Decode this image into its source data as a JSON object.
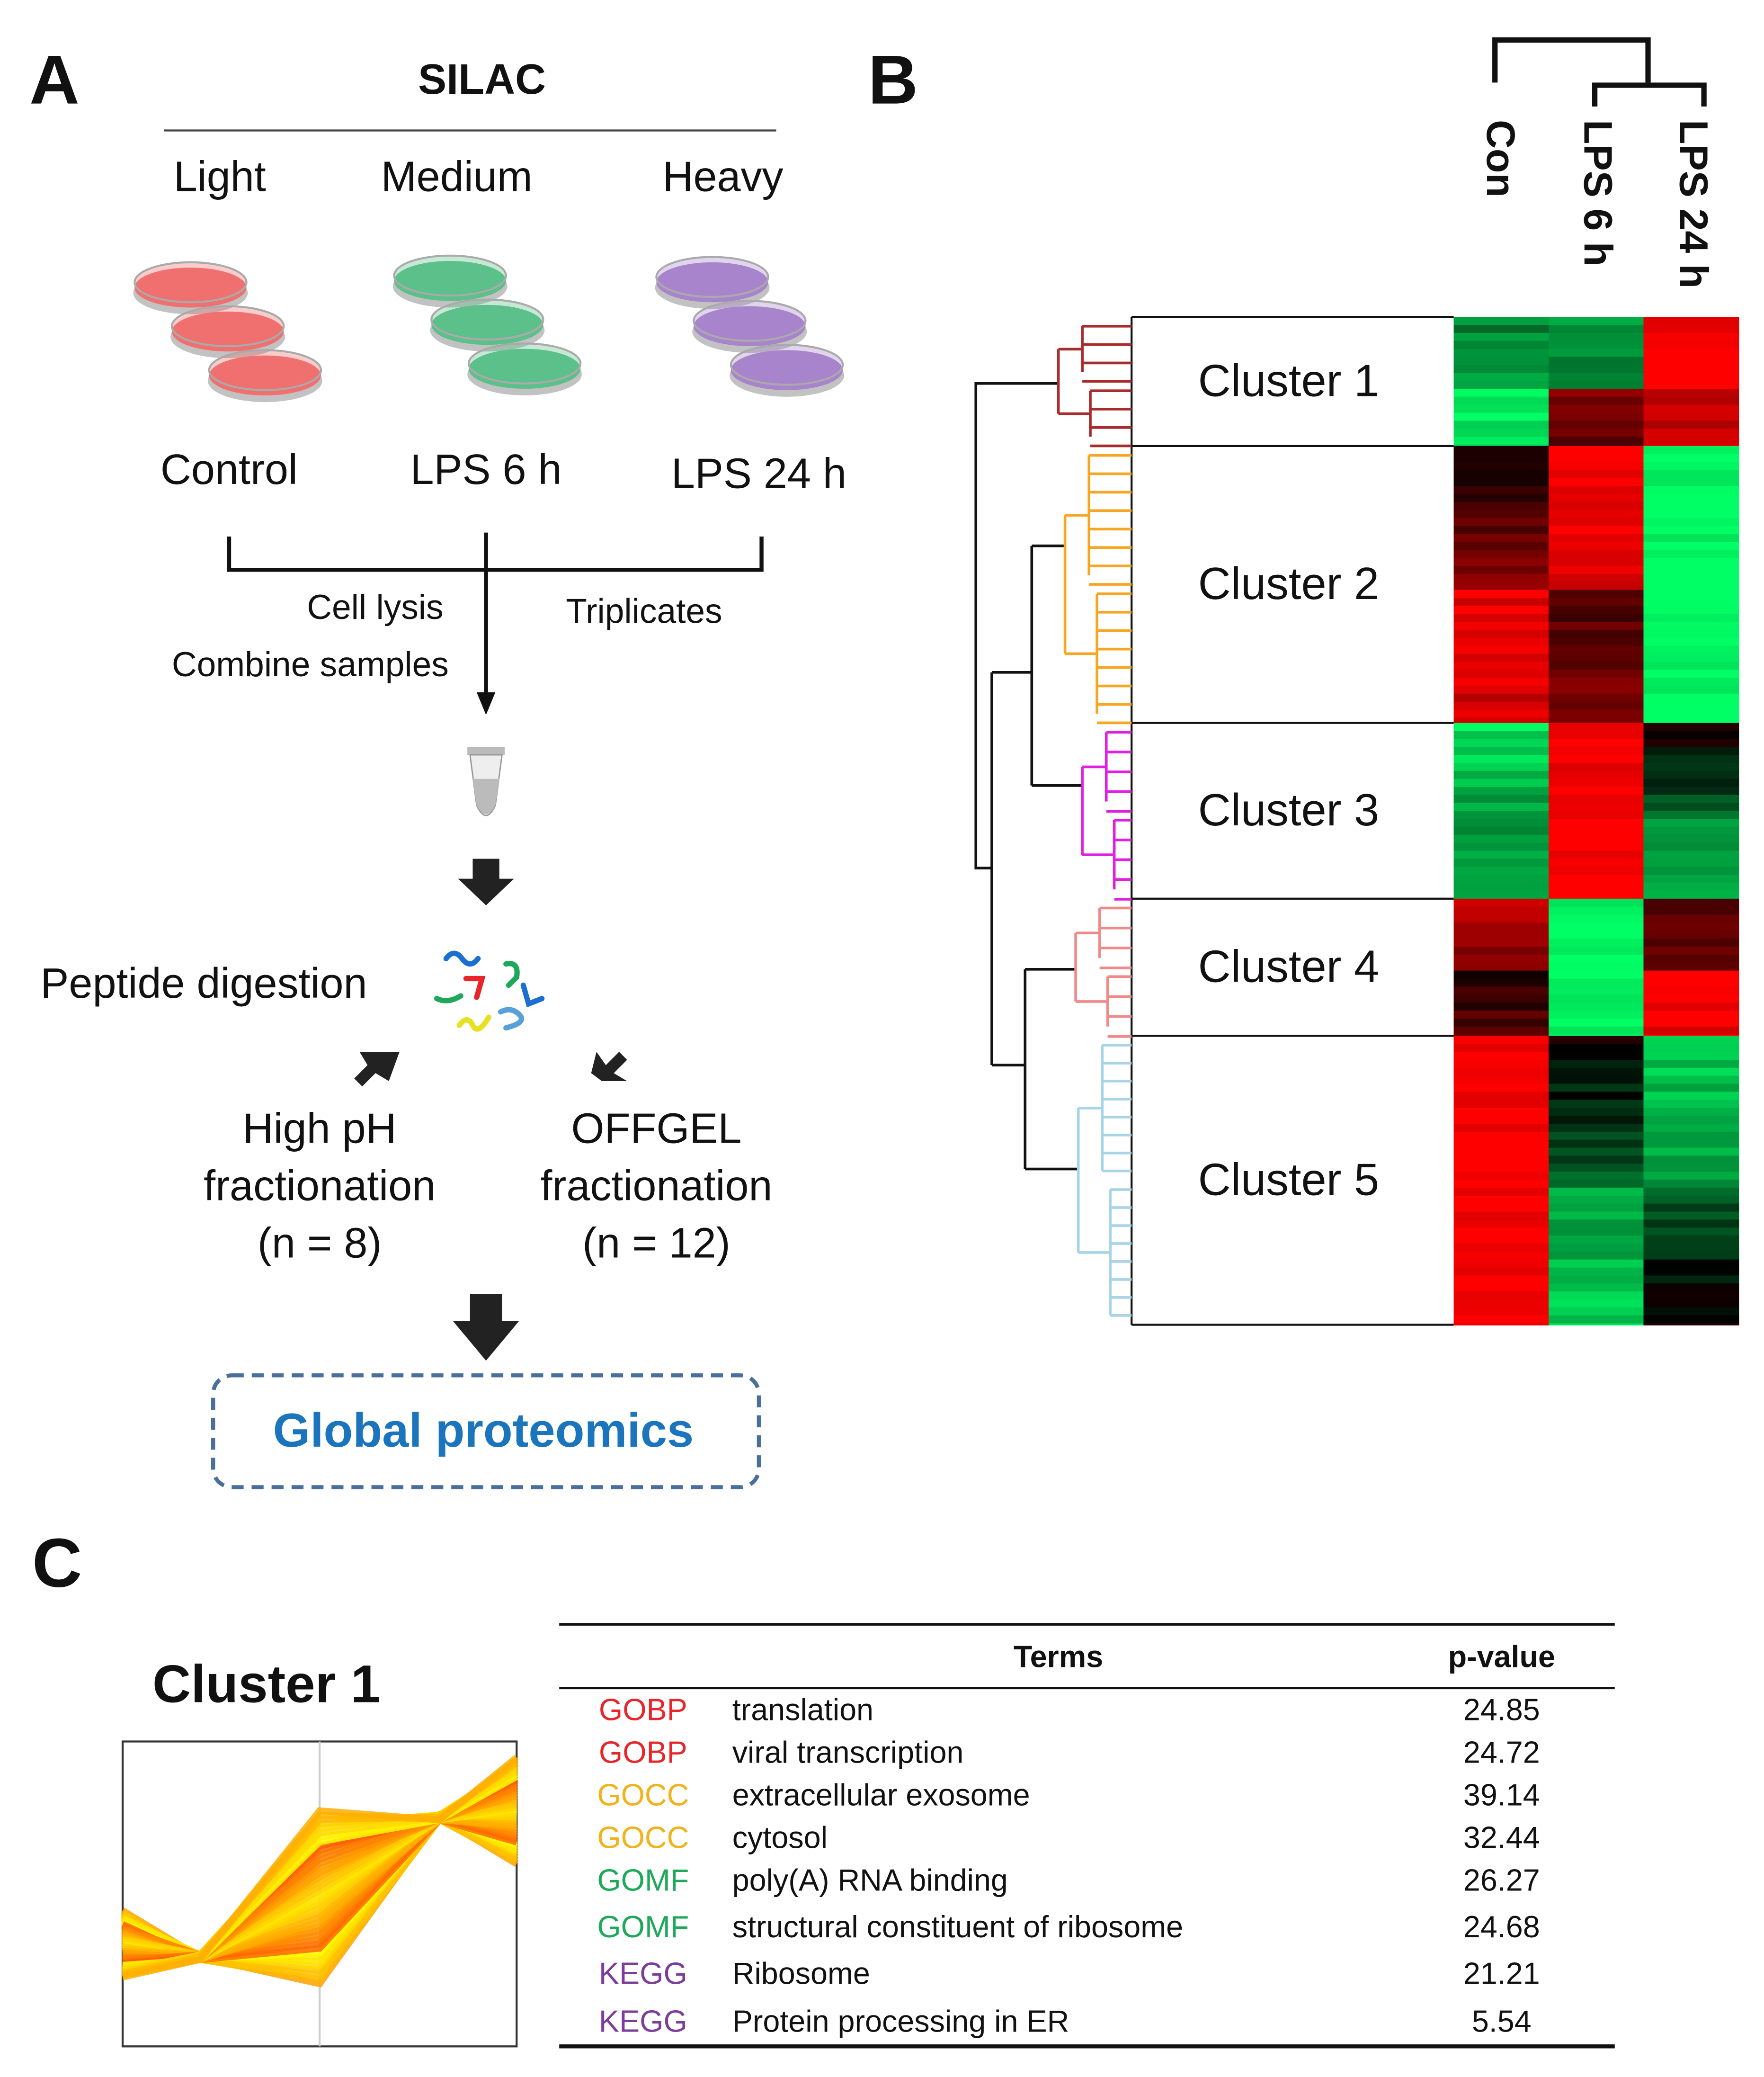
{
  "panel_a": {
    "label": "A",
    "title": "SILAC",
    "labels": [
      "Light",
      "Medium",
      "Heavy"
    ],
    "conditions": [
      "Control",
      "LPS 6 h",
      "LPS 24 h"
    ],
    "dish_colors": [
      "#f07070",
      "#5cc08a",
      "#a884cc"
    ],
    "lysis": "Cell lysis",
    "combine": "Combine samples",
    "triplicates": "Triplicates",
    "digestion": "Peptide digestion",
    "fractionations": [
      {
        "lines": [
          "High pH",
          "fractionation",
          "(n = 8)"
        ]
      },
      {
        "lines": [
          "OFFGEL",
          "fractionation",
          "(n = 12)"
        ]
      }
    ],
    "result": "Global proteomics"
  },
  "panel_b": {
    "label": "B",
    "columns": [
      "Con",
      "LPS 6 h",
      "LPS 24 h"
    ],
    "clusters": [
      "Cluster 1",
      "Cluster 2",
      "Cluster 3",
      "Cluster 4",
      "Cluster 5"
    ],
    "cluster_colors": [
      "#a82c2c",
      "#f5a623",
      "#e020e0",
      "#f08a8a",
      "#a8d4e8"
    ]
  },
  "panel_c": {
    "label": "C",
    "title": "Cluster 1",
    "header": [
      "Terms",
      "p-value"
    ],
    "category_colors": {
      "GOBP": "#e8262a",
      "GOCC": "#f2b21b",
      "GOMF": "#1ea85a",
      "KEGG": "#7b3e9a"
    },
    "rows": [
      [
        "GOBP",
        "translation",
        "24.85"
      ],
      [
        "GOBP",
        "viral transcription",
        "24.72"
      ],
      [
        "GOCC",
        "extracellular exosome",
        "39.14"
      ],
      [
        "GOCC",
        "cytosol",
        "32.44"
      ],
      [
        "GOMF",
        "poly(A) RNA binding",
        "26.27"
      ],
      [
        "GOMF",
        "structural constituent of ribosome",
        "24.68"
      ],
      [
        "KEGG",
        "Ribosome",
        "21.21"
      ],
      [
        "KEGG",
        "Protein processing in ER",
        "5.54"
      ]
    ]
  }
}
